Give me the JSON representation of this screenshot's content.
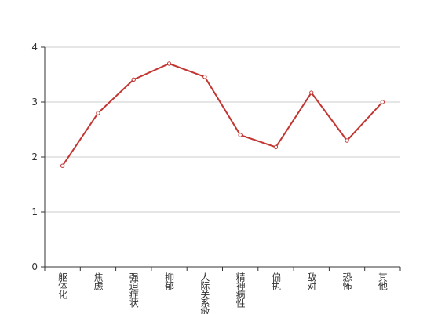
{
  "chart_data": {
    "type": "line",
    "categories": [
      "躯体化",
      "焦虑",
      "强迫症状",
      "抑郁",
      "人际关系敏感",
      "精神病性",
      "偏执",
      "敌对",
      "恐怖",
      "其他"
    ],
    "values": [
      1.84,
      2.8,
      3.41,
      3.7,
      3.46,
      2.4,
      2.18,
      3.17,
      2.3,
      3.0
    ],
    "color": "#c23531",
    "ylim": [
      0,
      4
    ],
    "yticks": [
      0,
      1,
      2,
      3,
      4
    ],
    "grid": true
  }
}
